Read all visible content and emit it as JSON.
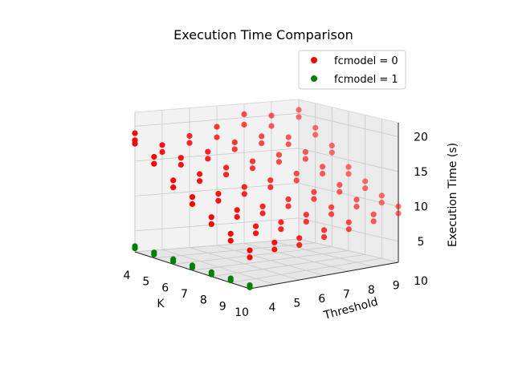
{
  "chart_data": {
    "type": "scatter",
    "projection": "3d",
    "title": "Execution Time Comparison",
    "xlabel": "K",
    "ylabel": "Threshold",
    "zlabel": "Execution Time (s)",
    "xticks": [
      "4",
      "5",
      "6",
      "7",
      "8",
      "9",
      "10"
    ],
    "yticks": [
      "4",
      "5",
      "6",
      "7",
      "8",
      "9",
      "10"
    ],
    "zticks": [
      "5",
      "10",
      "15",
      "20"
    ],
    "xlim": [
      4,
      10
    ],
    "ylim": [
      4,
      10
    ],
    "zlim": [
      2,
      22
    ],
    "grid": true,
    "legend_position": "top-right",
    "series": [
      {
        "name": "fcmodel = 0",
        "color": "#ff0000",
        "points": [
          [
            4,
            4,
            19
          ],
          [
            4,
            4,
            18
          ],
          [
            4,
            4,
            17.5
          ],
          [
            4,
            5,
            17
          ],
          [
            4,
            5,
            16
          ],
          [
            4,
            6,
            18
          ],
          [
            4,
            6,
            17
          ],
          [
            4,
            7,
            19
          ],
          [
            4,
            7,
            17.5
          ],
          [
            4,
            8,
            20.5
          ],
          [
            4,
            8,
            19
          ],
          [
            4,
            9,
            20
          ],
          [
            4,
            9,
            18.5
          ],
          [
            4,
            10,
            20.5
          ],
          [
            4,
            10,
            19.5
          ],
          [
            5,
            4,
            16.5
          ],
          [
            5,
            4,
            15.5
          ],
          [
            5,
            5,
            16
          ],
          [
            5,
            5,
            15
          ],
          [
            5,
            6,
            16.5
          ],
          [
            5,
            6,
            15.5
          ],
          [
            5,
            7,
            17.5
          ],
          [
            5,
            7,
            16.5
          ],
          [
            5,
            8,
            18
          ],
          [
            5,
            8,
            17
          ],
          [
            5,
            9,
            17.5
          ],
          [
            5,
            9,
            16.5
          ],
          [
            5,
            10,
            18.5
          ],
          [
            5,
            10,
            17.5
          ],
          [
            6,
            4,
            14
          ],
          [
            6,
            4,
            13
          ],
          [
            6,
            5,
            14.5
          ],
          [
            6,
            5,
            13.5
          ],
          [
            6,
            6,
            15
          ],
          [
            6,
            6,
            14
          ],
          [
            6,
            7,
            15.5
          ],
          [
            6,
            7,
            14.5
          ],
          [
            6,
            8,
            16
          ],
          [
            6,
            8,
            15
          ],
          [
            6,
            9,
            16
          ],
          [
            6,
            9,
            15
          ],
          [
            6,
            10,
            16.5
          ],
          [
            6,
            10,
            15.5
          ],
          [
            7,
            4,
            12.5
          ],
          [
            7,
            4,
            11.5
          ],
          [
            7,
            5,
            12.5
          ],
          [
            7,
            5,
            11.5
          ],
          [
            7,
            6,
            13
          ],
          [
            7,
            6,
            12
          ],
          [
            7,
            7,
            13.5
          ],
          [
            7,
            7,
            12.5
          ],
          [
            7,
            8,
            14
          ],
          [
            7,
            8,
            13
          ],
          [
            7,
            9,
            14.5
          ],
          [
            7,
            9,
            13.5
          ],
          [
            7,
            10,
            14
          ],
          [
            7,
            10,
            13
          ],
          [
            8,
            4,
            10.5
          ],
          [
            8,
            4,
            9.5
          ],
          [
            8,
            5,
            11
          ],
          [
            8,
            5,
            10
          ],
          [
            8,
            6,
            11
          ],
          [
            8,
            6,
            10
          ],
          [
            8,
            7,
            11.5
          ],
          [
            8,
            7,
            10.5
          ],
          [
            8,
            8,
            12
          ],
          [
            8,
            8,
            11
          ],
          [
            8,
            9,
            12.5
          ],
          [
            8,
            9,
            11.5
          ],
          [
            8,
            10,
            12.5
          ],
          [
            8,
            10,
            11.5
          ],
          [
            9,
            4,
            9
          ],
          [
            9,
            4,
            8
          ],
          [
            9,
            5,
            9.5
          ],
          [
            9,
            5,
            8.5
          ],
          [
            9,
            6,
            9.5
          ],
          [
            9,
            6,
            8.5
          ],
          [
            9,
            7,
            10
          ],
          [
            9,
            7,
            9
          ],
          [
            9,
            8,
            10.5
          ],
          [
            9,
            8,
            9.5
          ],
          [
            9,
            9,
            11
          ],
          [
            9,
            9,
            10
          ],
          [
            9,
            10,
            11
          ],
          [
            9,
            10,
            10
          ],
          [
            10,
            4,
            7.5
          ],
          [
            10,
            4,
            6.5
          ],
          [
            10,
            5,
            8
          ],
          [
            10,
            5,
            7
          ],
          [
            10,
            6,
            8
          ],
          [
            10,
            6,
            7
          ],
          [
            10,
            7,
            8.5
          ],
          [
            10,
            7,
            7.5
          ],
          [
            10,
            8,
            9
          ],
          [
            10,
            8,
            8
          ],
          [
            10,
            9,
            9.5
          ],
          [
            10,
            9,
            8.5
          ],
          [
            10,
            10,
            10
          ],
          [
            10,
            10,
            9
          ]
        ]
      },
      {
        "name": "fcmodel = 1",
        "color": "#008000",
        "points": [
          [
            4,
            4,
            2.8
          ],
          [
            4,
            4,
            2.5
          ],
          [
            5,
            4,
            2.8
          ],
          [
            5,
            4,
            2.5
          ],
          [
            6,
            4,
            2.7
          ],
          [
            6,
            4,
            2.4
          ],
          [
            7,
            4,
            2.7
          ],
          [
            7,
            4,
            2.4
          ],
          [
            8,
            4,
            2.6
          ],
          [
            8,
            4,
            2.3
          ],
          [
            9,
            4,
            2.6
          ],
          [
            9,
            4,
            2.3
          ],
          [
            10,
            4,
            2.5
          ],
          [
            10,
            4,
            2.2
          ]
        ]
      }
    ]
  }
}
